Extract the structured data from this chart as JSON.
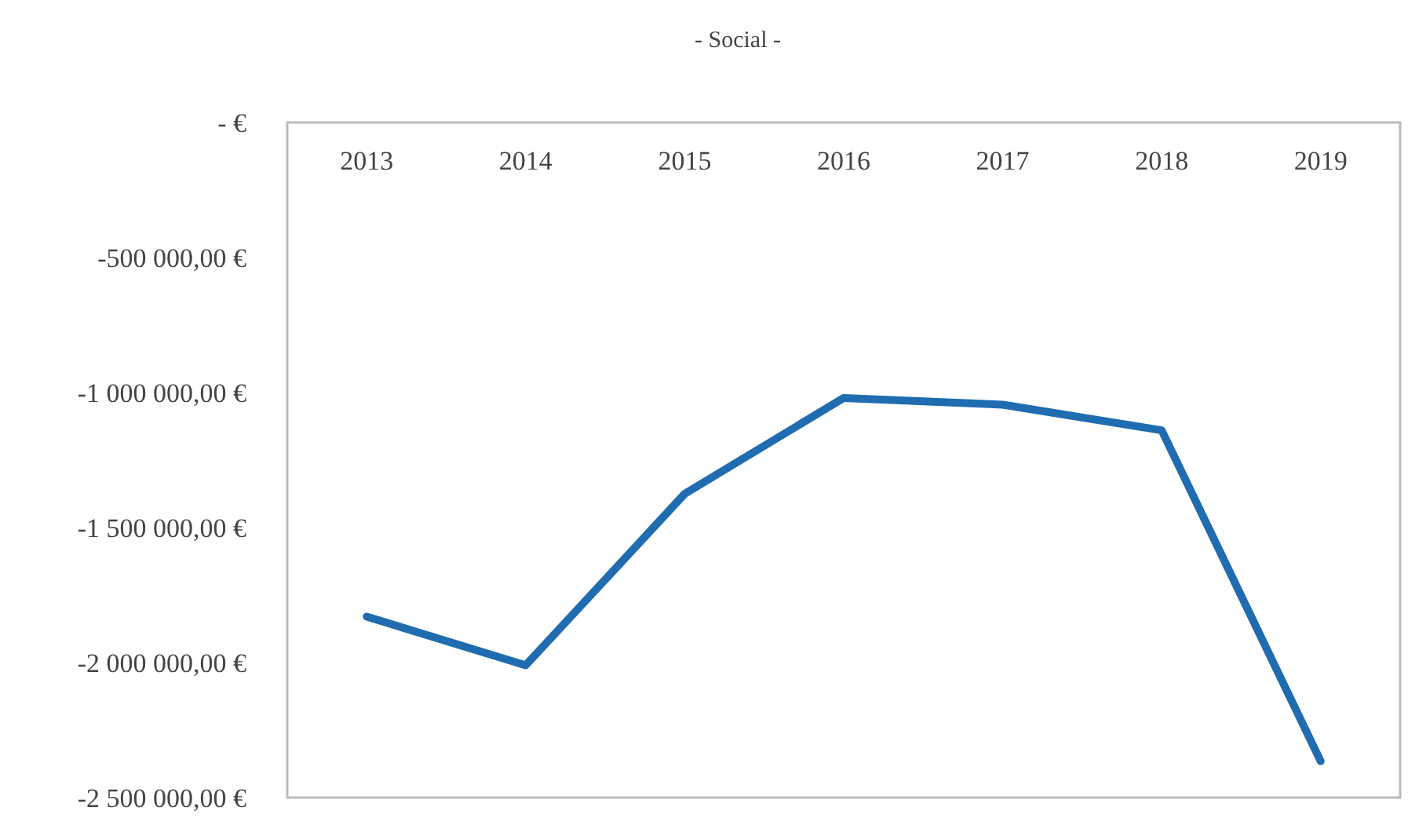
{
  "chart_data": {
    "type": "line",
    "title": "- Social -",
    "categories": [
      "2013",
      "2014",
      "2015",
      "2016",
      "2017",
      "2018",
      "2019"
    ],
    "series": [
      {
        "color": "#1f6cb0",
        "values": [
          -1830000,
          -2010000,
          -1375000,
          -1020000,
          -1045000,
          -1140000,
          -2365000
        ]
      }
    ],
    "ylim": [
      -2500000,
      0
    ],
    "yticks": [
      {
        "value": -2500000,
        "label": "-2 500 000,00 €"
      },
      {
        "value": -2000000,
        "label": "-2 000 000,00 €"
      },
      {
        "value": -1500000,
        "label": "-1 500 000,00 €"
      },
      {
        "value": -1000000,
        "label": "-1 000 000,00 €"
      },
      {
        "value": -500000,
        "label": "-500 000,00 €"
      },
      {
        "value": 0,
        "label": "-   €"
      }
    ],
    "grid": false,
    "marker": "none",
    "line_style": "solid"
  }
}
